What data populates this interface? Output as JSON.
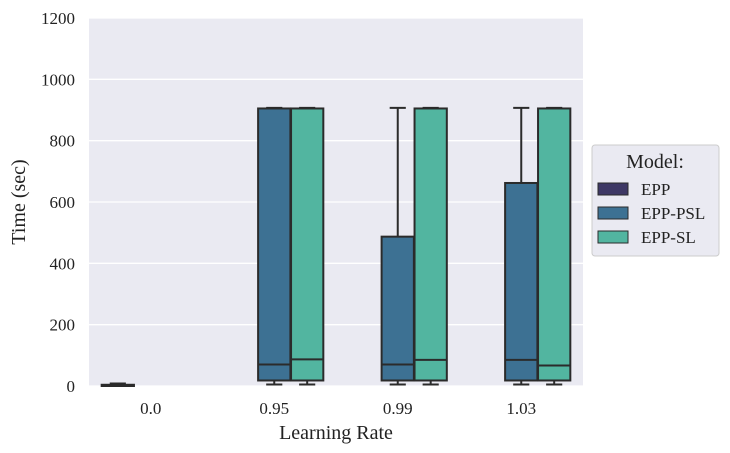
{
  "chart_data": {
    "type": "box",
    "xlabel": "Learning Rate",
    "ylabel": "Time (sec)",
    "ylim": [
      0,
      1200
    ],
    "yticks": [
      0,
      200,
      400,
      600,
      800,
      1000,
      1200
    ],
    "categories": [
      "0.0",
      "0.95",
      "0.99",
      "1.03"
    ],
    "grid": true,
    "legend": {
      "title": "Model:",
      "placement": "right"
    },
    "series": [
      {
        "name": "EPP",
        "color": "#3e3865",
        "boxes": [
          {
            "category": "0.0",
            "whisker_low": 0,
            "q1": 0,
            "median": 2,
            "q3": 4,
            "whisker_high": 8
          }
        ]
      },
      {
        "name": "EPP-PSL",
        "color": "#3d7193",
        "boxes": [
          {
            "category": "0.95",
            "whisker_low": 5,
            "q1": 18,
            "median": 70,
            "q3": 905,
            "whisker_high": 907
          },
          {
            "category": "0.99",
            "whisker_low": 5,
            "q1": 18,
            "median": 70,
            "q3": 487,
            "whisker_high": 907
          },
          {
            "category": "1.03",
            "whisker_low": 5,
            "q1": 18,
            "median": 85,
            "q3": 662,
            "whisker_high": 907
          }
        ]
      },
      {
        "name": "EPP-SL",
        "color": "#52b5a0",
        "boxes": [
          {
            "category": "0.95",
            "whisker_low": 5,
            "q1": 18,
            "median": 87,
            "q3": 905,
            "whisker_high": 907
          },
          {
            "category": "0.99",
            "whisker_low": 5,
            "q1": 18,
            "median": 85,
            "q3": 905,
            "whisker_high": 907
          },
          {
            "category": "1.03",
            "whisker_low": 5,
            "q1": 18,
            "median": 67,
            "q3": 905,
            "whisker_high": 907
          }
        ]
      }
    ]
  }
}
